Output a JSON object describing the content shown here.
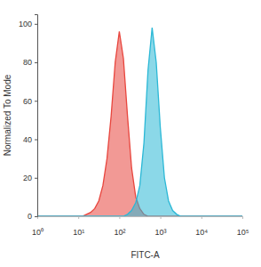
{
  "chart_data": {
    "type": "area",
    "x_label": "FITC-A",
    "y_label": "Normalized To Mode",
    "log": "x",
    "x": [
      1,
      10,
      12.6,
      15.8,
      20,
      25.1,
      31.6,
      39.8,
      50.1,
      63.1,
      79.4,
      100,
      125.9,
      158.5,
      199.5,
      251.2,
      316.2,
      398.1,
      501.2,
      631,
      794.3,
      1000,
      1258.9,
      1584.9,
      1995.3,
      2511.9,
      3162.3,
      3981.1,
      100000
    ],
    "series": [
      {
        "color": "#e8463e",
        "values": [
          0,
          0,
          0,
          1,
          2,
          4,
          8,
          16,
          30,
          52,
          80,
          96,
          82,
          52,
          25,
          10,
          4,
          1,
          0,
          0,
          0,
          0,
          0,
          0,
          0,
          0,
          0,
          0,
          0
        ]
      },
      {
        "color": "#2bb8d6",
        "values": [
          0,
          0,
          0,
          0,
          0,
          0,
          0,
          0,
          0,
          0,
          0,
          0,
          0,
          1,
          3,
          7,
          16,
          38,
          76,
          98,
          80,
          46,
          20,
          8,
          3,
          1,
          0,
          0,
          0
        ]
      }
    ],
    "xlim": [
      1,
      100000
    ],
    "xticks": [
      {
        "value": 1,
        "label": "10⁰"
      },
      {
        "value": 10,
        "label": "10¹"
      },
      {
        "value": 100,
        "label": "10²"
      },
      {
        "value": 1000,
        "label": "10³"
      },
      {
        "value": 10000,
        "label": "10⁴"
      },
      {
        "value": 100000,
        "label": "10⁵"
      }
    ],
    "ylim": [
      0,
      105
    ],
    "yticks": [
      0,
      20,
      40,
      60,
      80,
      100
    ],
    "grid": false
  }
}
